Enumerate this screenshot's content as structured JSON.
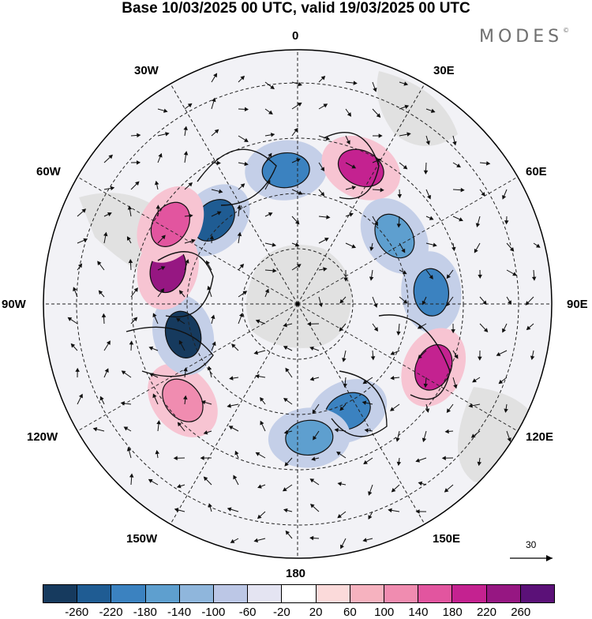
{
  "title": "Base 10/03/2025 00 UTC, valid 19/03/2025 00 UTC",
  "brand": "MODES",
  "brand_mark": "©",
  "longitude_labels": {
    "top": "0",
    "top_right": "30E",
    "right_upper": "60E",
    "right": "90E",
    "right_lower": "120E",
    "bottom_right": "150E",
    "bottom": "180",
    "bottom_left": "150W",
    "left_lower": "120W",
    "left": "90W",
    "left_upper": "60W",
    "top_left": "30W"
  },
  "reference_vector_label": "30",
  "colorbar": {
    "colors": [
      "#163a5e",
      "#1f5c93",
      "#3b82c0",
      "#5e9fcf",
      "#8fb6dc",
      "#bcc7e6",
      "#e4e4f2",
      "#ffffff",
      "#fbdada",
      "#f6b2bf",
      "#f08cb0",
      "#e2559f",
      "#c42290",
      "#961782",
      "#5b1178"
    ],
    "tick_labels": [
      "-260",
      "-220",
      "-180",
      "-140",
      "-100",
      "-60",
      "-20",
      "20",
      "60",
      "100",
      "140",
      "180",
      "220",
      "260"
    ]
  },
  "anomaly_features": [
    {
      "sign": "negative",
      "color": "#1f5c93",
      "lon": -45
    },
    {
      "sign": "negative",
      "color": "#3b82c0",
      "lon": -5
    },
    {
      "sign": "positive",
      "color": "#c42290",
      "lon": 25
    },
    {
      "sign": "negative",
      "color": "#5e9fcf",
      "lon": 55
    },
    {
      "sign": "negative",
      "color": "#3b82c0",
      "lon": 85
    },
    {
      "sign": "positive",
      "color": "#c42290",
      "lon": 115
    },
    {
      "sign": "negative",
      "color": "#3b82c0",
      "lon": 155
    },
    {
      "sign": "negative",
      "color": "#5e9fcf",
      "lon": 175
    },
    {
      "sign": "positive",
      "color": "#f08cb0",
      "lon": -130
    },
    {
      "sign": "negative",
      "color": "#163a5e",
      "lon": -105
    },
    {
      "sign": "positive",
      "color": "#961782",
      "lon": -75
    },
    {
      "sign": "positive",
      "color": "#e2559f",
      "lon": -58
    }
  ]
}
